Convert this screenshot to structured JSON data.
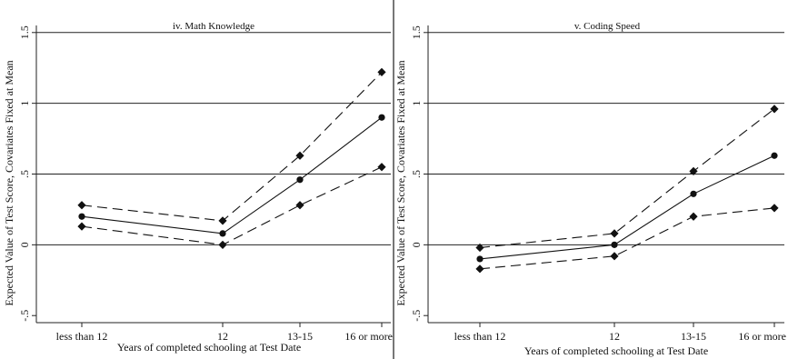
{
  "chart_data": [
    {
      "type": "line",
      "title": "iv. Math Knowledge",
      "ylabel": "Expected Value of Test Score, Covariates Fixed at Mean",
      "xlabel": "Years of completed schooling at Test Date",
      "categories": [
        "less than 12",
        "12",
        "13-15",
        "16 or more"
      ],
      "x": [
        8,
        12,
        14,
        16
      ],
      "ylim": [
        -0.55,
        1.55
      ],
      "yticks": [
        -0.5,
        0,
        0.5,
        1,
        1.5
      ],
      "ytick_labels": [
        "-.5",
        "0",
        ".5",
        "1",
        "1.5"
      ],
      "grid": "horizontal",
      "series": [
        {
          "role": "upper",
          "style": "dashed",
          "marker": "diamond",
          "values": [
            0.28,
            0.17,
            0.63,
            1.22
          ]
        },
        {
          "role": "estimate",
          "style": "solid",
          "marker": "circle",
          "values": [
            0.2,
            0.08,
            0.46,
            0.9
          ]
        },
        {
          "role": "lower",
          "style": "dashed",
          "marker": "diamond",
          "values": [
            0.13,
            0.0,
            0.28,
            0.55
          ]
        }
      ]
    },
    {
      "type": "line",
      "title": "v. Coding Speed",
      "ylabel": "Expected Value of Test Score, Covariates Fixed at Mean",
      "xlabel": "Years of completed schooling at Test Date",
      "categories": [
        "less than 12",
        "12",
        "13-15",
        "16 or more"
      ],
      "x": [
        8,
        12,
        14,
        16
      ],
      "ylim": [
        -0.55,
        1.55
      ],
      "yticks": [
        -0.5,
        0,
        0.5,
        1,
        1.5
      ],
      "ytick_labels": [
        "-.5",
        "0",
        ".5",
        "1",
        "1.5"
      ],
      "grid": "horizontal",
      "series": [
        {
          "role": "upper",
          "style": "dashed",
          "marker": "diamond",
          "values": [
            -0.02,
            0.08,
            0.52,
            0.96
          ]
        },
        {
          "role": "estimate",
          "style": "solid",
          "marker": "circle",
          "values": [
            -0.1,
            0.0,
            0.36,
            0.63
          ]
        },
        {
          "role": "lower",
          "style": "dashed",
          "marker": "diamond",
          "values": [
            -0.17,
            -0.08,
            0.2,
            0.26
          ]
        }
      ]
    }
  ]
}
